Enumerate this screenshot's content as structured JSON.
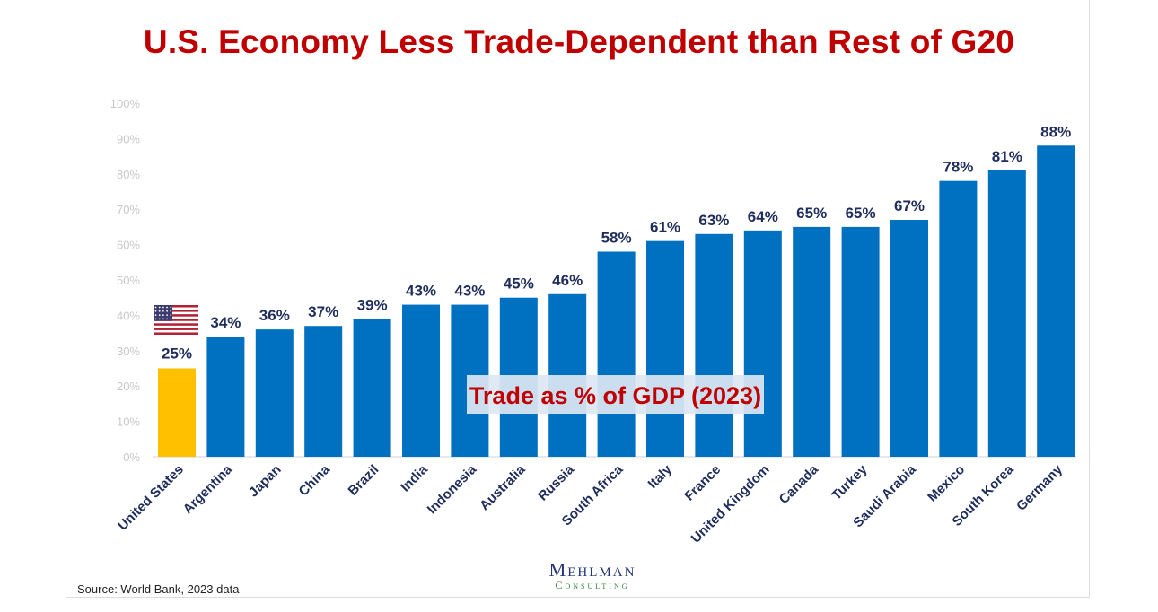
{
  "title": "U.S. Economy Less Trade-Dependent than Rest of G20",
  "source": "Source: World Bank, 2023 data",
  "logo": {
    "name": "Mehlman",
    "sub": "Consulting"
  },
  "colors": {
    "highlight": "#ffc000",
    "bar": "#0070c0",
    "label": "#1f2d5c",
    "title": "#c00000"
  },
  "chart_data": {
    "type": "bar",
    "title": "U.S. Economy Less Trade-Dependent than Rest of G20",
    "annotation": "Trade as % of GDP (2023)",
    "categories": [
      "United States",
      "Argentina",
      "Japan",
      "China",
      "Brazil",
      "India",
      "Indonesia",
      "Australia",
      "Russia",
      "South Africa",
      "Italy",
      "France",
      "United Kingdom",
      "Canada",
      "Turkey",
      "Saudi Arabia",
      "Mexico",
      "South Korea",
      "Germany"
    ],
    "values": [
      25,
      34,
      36,
      37,
      39,
      43,
      43,
      45,
      46,
      58,
      61,
      63,
      64,
      65,
      65,
      67,
      78,
      81,
      88
    ],
    "data_labels": [
      "25%",
      "34%",
      "36%",
      "37%",
      "39%",
      "43%",
      "43%",
      "45%",
      "46%",
      "58%",
      "61%",
      "63%",
      "64%",
      "65%",
      "65%",
      "67%",
      "78%",
      "81%",
      "88%"
    ],
    "highlight_category": "United States",
    "yticks": [
      "0%",
      "10%",
      "20%",
      "30%",
      "40%",
      "50%",
      "60%",
      "70%",
      "80%",
      "90%",
      "100%"
    ],
    "ylim": [
      0,
      100
    ],
    "xlabel": "",
    "ylabel": ""
  }
}
